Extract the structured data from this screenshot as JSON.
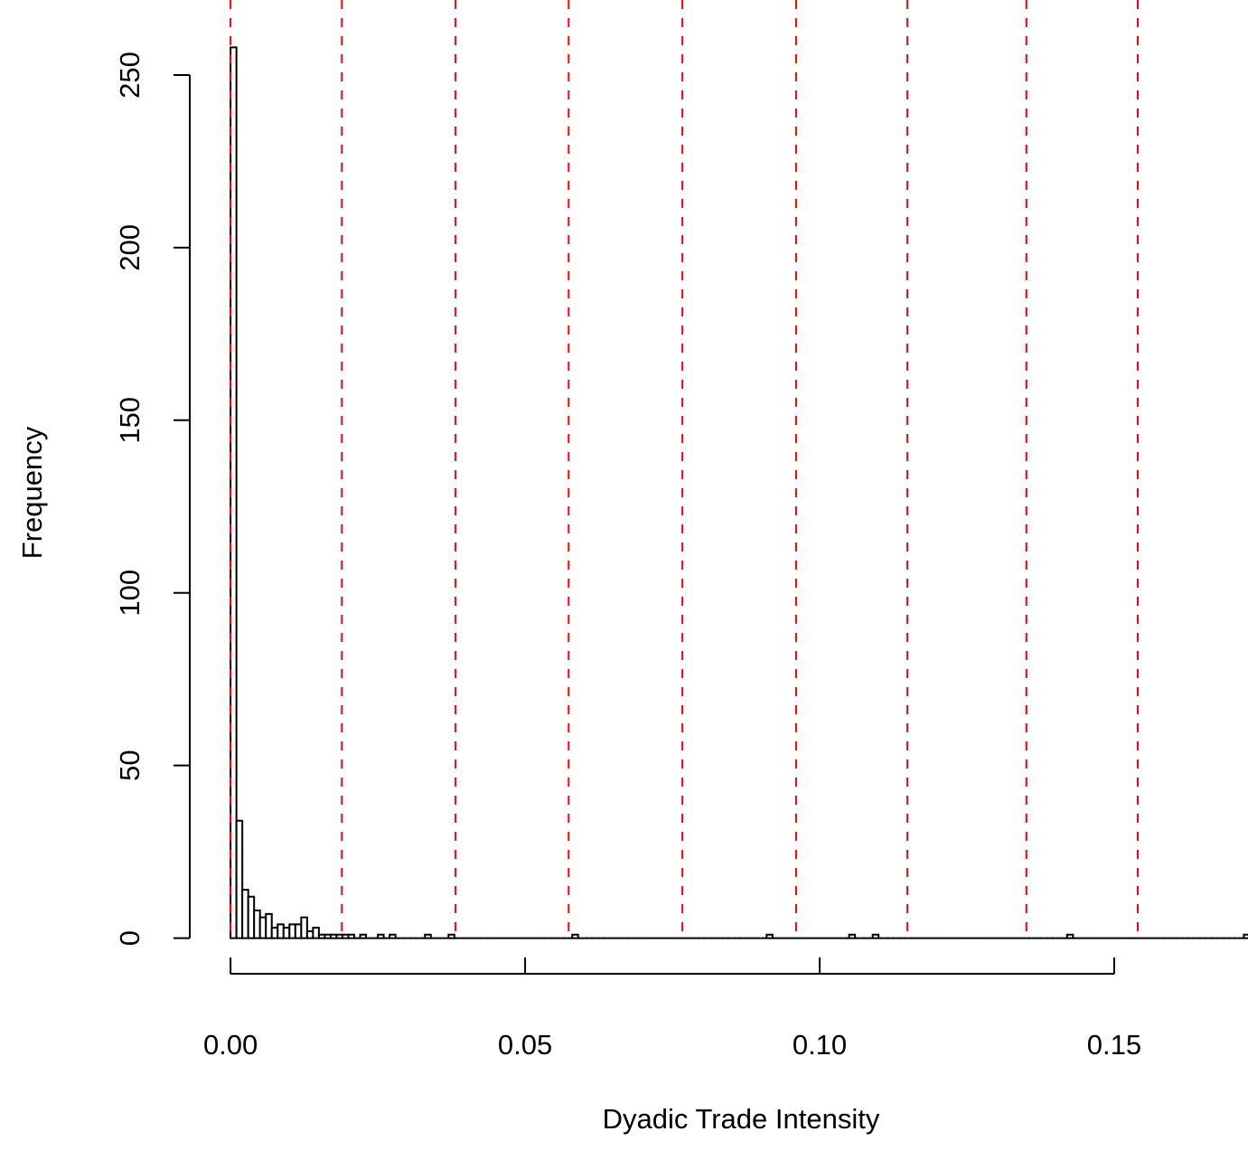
{
  "chart_data": {
    "type": "histogram",
    "x_label": "Dyadic Trade Intensity",
    "y_label": "Frequency",
    "bins": [
      0,
      0.001,
      0.002,
      0.003,
      0.004,
      0.005,
      0.006,
      0.007,
      0.008,
      0.009,
      0.01,
      0.011,
      0.012,
      0.013,
      0.014,
      0.015,
      0.016,
      0.017,
      0.018,
      0.019,
      0.02,
      0.021,
      0.022,
      0.023,
      0.024,
      0.025,
      0.026,
      0.027,
      0.028,
      0.029,
      0.03,
      0.031,
      0.032,
      0.033,
      0.034,
      0.035,
      0.036,
      0.037,
      0.038,
      0.039,
      0.04,
      0.041,
      0.042,
      0.043,
      0.044,
      0.045,
      0.046,
      0.047,
      0.048,
      0.049,
      0.05,
      0.051,
      0.052,
      0.053,
      0.054,
      0.055,
      0.056,
      0.057,
      0.058,
      0.059,
      0.06,
      0.061,
      0.062,
      0.063,
      0.064,
      0.065,
      0.066,
      0.067,
      0.068,
      0.069,
      0.07,
      0.071,
      0.072,
      0.073,
      0.074,
      0.075,
      0.076,
      0.077,
      0.078,
      0.079,
      0.08,
      0.081,
      0.082,
      0.083,
      0.084,
      0.085,
      0.086,
      0.087,
      0.088,
      0.089,
      0.09,
      0.091,
      0.092,
      0.093,
      0.094,
      0.095,
      0.096,
      0.097,
      0.098,
      0.099,
      0.1,
      0.101,
      0.102,
      0.103,
      0.104,
      0.105,
      0.106,
      0.107,
      0.108,
      0.109,
      0.11,
      0.111,
      0.112,
      0.113,
      0.114,
      0.115,
      0.116,
      0.117,
      0.118,
      0.119,
      0.12,
      0.121,
      0.122,
      0.123,
      0.124,
      0.125,
      0.126,
      0.127,
      0.128,
      0.129,
      0.13,
      0.131,
      0.132,
      0.133,
      0.134,
      0.135,
      0.136,
      0.137,
      0.138,
      0.139,
      0.14,
      0.141,
      0.142,
      0.143,
      0.144,
      0.145,
      0.146,
      0.147,
      0.148,
      0.149,
      0.15,
      0.151,
      0.152,
      0.153,
      0.154,
      0.155,
      0.156,
      0.157,
      0.158,
      0.159,
      0.16,
      0.161,
      0.162,
      0.163,
      0.164,
      0.165,
      0.166,
      0.167,
      0.168,
      0.169,
      0.17,
      0.171,
      0.172,
      0.173
    ],
    "values": [
      258,
      34,
      14,
      12,
      8,
      6,
      7,
      3,
      4,
      3,
      4,
      4,
      6,
      2,
      3,
      1,
      1,
      1,
      1,
      1,
      1,
      0,
      1,
      0,
      0,
      1,
      0,
      1,
      0,
      0,
      0,
      0,
      0,
      1,
      0,
      0,
      0,
      1,
      0,
      0,
      0,
      0,
      0,
      0,
      0,
      0,
      0,
      0,
      0,
      0,
      0,
      0,
      0,
      0,
      0,
      0,
      0,
      0,
      1,
      0,
      0,
      0,
      0,
      0,
      0,
      0,
      0,
      0,
      0,
      0,
      0,
      0,
      0,
      0,
      0,
      0,
      0,
      0,
      0,
      0,
      0,
      0,
      0,
      0,
      0,
      0,
      0,
      0,
      0,
      0,
      0,
      1,
      0,
      0,
      0,
      0,
      0,
      0,
      0,
      0,
      0,
      0,
      0,
      0,
      0,
      1,
      0,
      0,
      0,
      1,
      0,
      0,
      0,
      0,
      0,
      0,
      0,
      0,
      0,
      0,
      0,
      0,
      0,
      0,
      0,
      0,
      0,
      0,
      0,
      0,
      0,
      0,
      0,
      0,
      0,
      0,
      0,
      0,
      0,
      0,
      0,
      0,
      1,
      0,
      0,
      0,
      0,
      0,
      0,
      0,
      0,
      0,
      0,
      0,
      0,
      0,
      0,
      0,
      0,
      0,
      0,
      0,
      0,
      0,
      0,
      0,
      0,
      0,
      0,
      0,
      0,
      0,
      1
    ],
    "color": "#ffffff",
    "edge_color": "#000000",
    "xlim": [
      -0.00692,
      0.17992
    ],
    "ylim": [
      -10.32,
      268.32
    ],
    "xticks": [
      {
        "value": 0,
        "label": "0.00"
      },
      {
        "value": 0.05,
        "label": "0.05"
      },
      {
        "value": 0.1,
        "label": "0.10"
      },
      {
        "value": 0.15,
        "label": "0.15"
      }
    ],
    "yticks": [
      0,
      50,
      100,
      150,
      200,
      250
    ],
    "vlines": {
      "color": "#ff0000",
      "values": [
        0,
        0.0189,
        0.0382,
        0.0574,
        0.0767,
        0.096,
        0.1149,
        0.1351,
        0.154
      ]
    }
  }
}
